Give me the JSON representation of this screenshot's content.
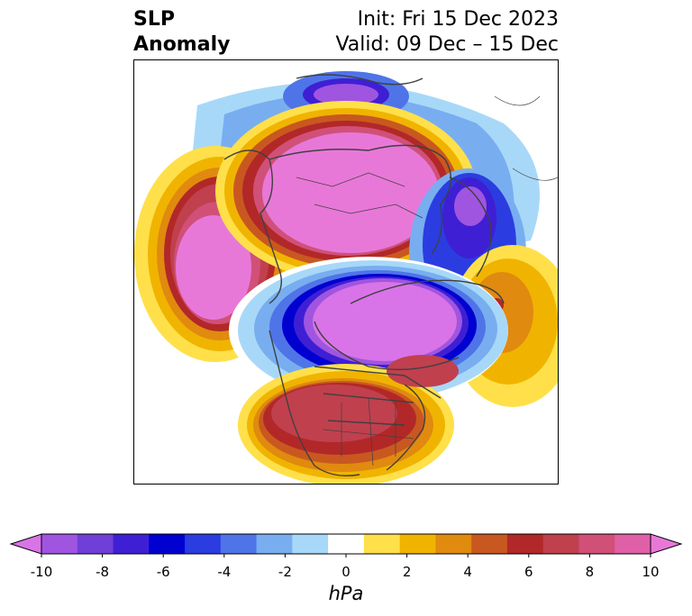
{
  "title": {
    "left_line1": "SLP",
    "left_line2": "Anomaly",
    "right_line1": "Init: Fri 15 Dec 2023",
    "right_line2": "Valid: 09 Dec – 15 Dec"
  },
  "colorbar": {
    "units": "hPa",
    "ticks": [
      "-10",
      "-8",
      "-6",
      "-4",
      "-2",
      "0",
      "2",
      "4",
      "6",
      "8",
      "10"
    ],
    "colors": [
      "#d874e8",
      "#a055e0",
      "#6f3fd8",
      "#3f1fd4",
      "#0000d0",
      "#2b3de0",
      "#4f74e8",
      "#78aef0",
      "#a8d8f8",
      "#ffffff",
      "#ffe04a",
      "#f0b400",
      "#e08a10",
      "#c85820",
      "#b22828",
      "#c0404e",
      "#d05078",
      "#e060a8",
      "#e878d8"
    ]
  },
  "map_colors": {
    "coast": "#404040",
    "strong_pos": "#e878d8",
    "pos_ring": [
      "#ffe04a",
      "#f0b400",
      "#e08a10",
      "#c85820",
      "#b22828",
      "#c0404e",
      "#d05078"
    ],
    "neg_ring": [
      "#a8d8f8",
      "#78aef0",
      "#4f74e8",
      "#2b3de0",
      "#0000d0",
      "#3f1fd4"
    ],
    "strong_neg": "#d874e8"
  }
}
